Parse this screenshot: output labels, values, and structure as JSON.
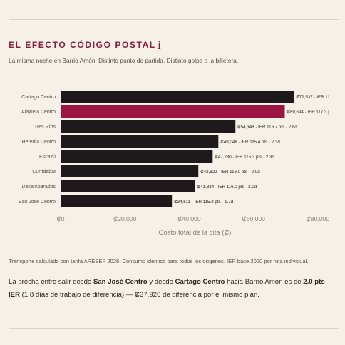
{
  "header": {
    "title": "EL EFECTO CÓDIGO POSTAL",
    "info_glyph": "i",
    "subtitle": "La misma noche en Barrio Amón. Distinto punto de partida. Distinto golpe a la billetera."
  },
  "colors": {
    "bar": "#1e1a1b",
    "highlight": "#9b1442",
    "accent_title": "#8b1a3f",
    "background": "#f5f1e8"
  },
  "chart_data": {
    "type": "bar",
    "orientation": "horizontal",
    "categories": [
      "Cartago Centro",
      "Alajuela Centro",
      "Tres Ríos",
      "Heredia Centro",
      "Escazú",
      "Curridabat",
      "Desamparados",
      "San José Centro"
    ],
    "values": [
      72537,
      69694,
      54348,
      49046,
      47280,
      42822,
      41834,
      34611
    ],
    "data_labels": [
      "₡72,537 · IER 11",
      "₡69,694 · IER 117.3 |",
      "₡54,348 · IER 116.7 pts · 2.8d",
      "₡49,046 · IER 115.4 pts · 2.3d",
      "₡47,280 · IER 115.3 pts · 2.3d",
      "₡42,822 · IER 116.0 pts · 2.0d",
      "₡41,834 · IER 116.0 pts · 2.0d",
      "₡34,611 · IER 115.3 pts · 1.7d"
    ],
    "highlight_index": 1,
    "xlim": [
      0,
      80000
    ],
    "xticks": [
      0,
      20000,
      40000,
      60000,
      80000
    ],
    "xtick_labels": [
      "₡0",
      "₡20,000",
      "₡40,000",
      "₡60,000",
      "₡80,000"
    ],
    "xlabel": "Costo total de la cita (₡)",
    "grid": false,
    "legend": "none"
  },
  "footnote": "Transporte calculado con tarifa ARESEP 2026. Consumo idéntico para todos los orígenes. IER base 2020 por ruta individual.",
  "summary": {
    "p1": "La brecha entre salir desde ",
    "origin": "San José Centro",
    "p2": " y desde ",
    "dest": "Cartago Centro",
    "p3": " hacia Barrio Amón es de ",
    "gap": "2.0 pts IER",
    "p4": " (1.8 días de trabajo de diferencia) — ₡37,926 de diferencia por el mismo plan."
  }
}
